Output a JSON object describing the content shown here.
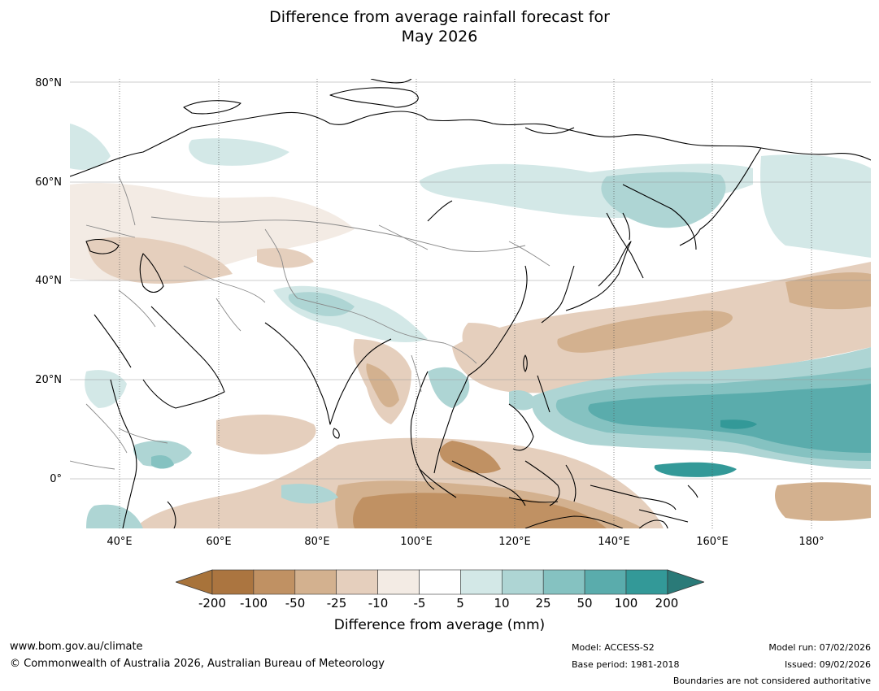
{
  "title": {
    "line1": "Difference from average rainfall forecast for",
    "line2": "May 2026"
  },
  "map": {
    "name": "Asia and Western Pacific rainfall anomaly map",
    "latitude_labels": [
      "80°N",
      "60°N",
      "40°N",
      "20°N",
      "0°"
    ],
    "longitude_labels": [
      "40°E",
      "60°E",
      "80°E",
      "100°E",
      "120°E",
      "140°E",
      "160°E",
      "180°"
    ],
    "extent": {
      "lon_min": 30,
      "lon_max": 192,
      "lat_min": -10,
      "lat_max": 81
    }
  },
  "colorbar": {
    "ticks": [
      "-200",
      "-100",
      "-50",
      "-25",
      "-10",
      "-5",
      "5",
      "10",
      "25",
      "50",
      "100",
      "200"
    ],
    "colors": [
      "#a8733a",
      "#ab7540",
      "#c09163",
      "#d3b18f",
      "#e5cfbd",
      "#f3ebe4",
      "#ffffff",
      "#d3e8e7",
      "#aed5d4",
      "#85c2c1",
      "#5aacac",
      "#339998",
      "#2a7a78"
    ],
    "label": "Difference from average (mm)"
  },
  "footer": {
    "website": "www.bom.gov.au/climate",
    "copyright": "© Commonwealth of Australia 2026, Australian Bureau of Meteorology",
    "model": "Model: ACCESS-S2",
    "base_period": "Base period: 1981-2018",
    "model_run": "Model run: 07/02/2026",
    "issued": "Issued: 09/02/2026",
    "disclaimer": "Boundaries are not considered authoritative"
  }
}
